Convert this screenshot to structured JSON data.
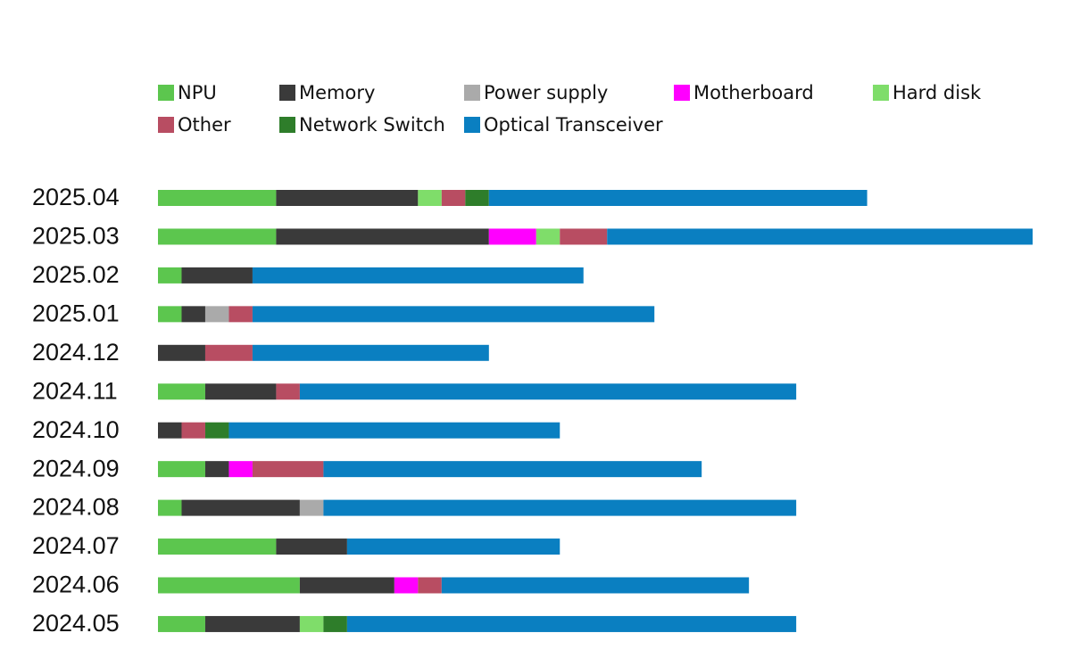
{
  "chart_data": {
    "type": "stacked-bar-horizontal",
    "categories": [
      "2025.04",
      "2025.03",
      "2025.02",
      "2025.01",
      "2024.12",
      "2024.11",
      "2024.10",
      "2024.09",
      "2024.08",
      "2024.07",
      "2024.06",
      "2024.05"
    ],
    "series": [
      {
        "name": "NPU",
        "color": "#5cc64e",
        "values": [
          5,
          5,
          1,
          1,
          0,
          2,
          0,
          2,
          1,
          5,
          6,
          2
        ]
      },
      {
        "name": "Memory",
        "color": "#3a3a3a",
        "values": [
          6,
          9,
          3,
          1,
          2,
          3,
          1,
          1,
          5,
          3,
          4,
          4
        ]
      },
      {
        "name": "Power supply",
        "color": "#aaaaaa",
        "values": [
          0,
          0,
          0,
          1,
          0,
          0,
          0,
          0,
          1,
          0,
          0,
          0
        ]
      },
      {
        "name": "Motherboard",
        "color": "#ff00ff",
        "values": [
          0,
          2,
          0,
          0,
          0,
          0,
          0,
          1,
          0,
          0,
          1,
          0
        ]
      },
      {
        "name": "Hard disk",
        "color": "#7fdd6a",
        "values": [
          1,
          1,
          0,
          0,
          0,
          0,
          0,
          0,
          0,
          0,
          0,
          1
        ]
      },
      {
        "name": "Other",
        "color": "#b84d62",
        "values": [
          1,
          2,
          0,
          1,
          2,
          1,
          1,
          3,
          0,
          0,
          1,
          0
        ]
      },
      {
        "name": "Network Switch",
        "color": "#2e7d2a",
        "values": [
          1,
          0,
          0,
          0,
          0,
          0,
          1,
          0,
          0,
          0,
          0,
          1
        ]
      },
      {
        "name": "Optical Transceiver",
        "color": "#0a7fc1",
        "values": [
          16,
          18,
          14,
          17,
          10,
          21,
          14,
          16,
          20,
          9,
          13,
          19
        ]
      }
    ]
  }
}
